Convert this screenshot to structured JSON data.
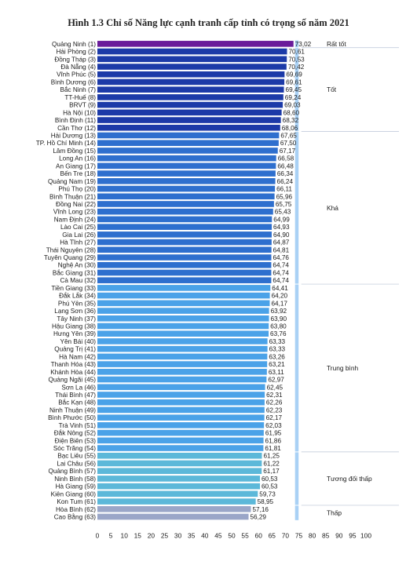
{
  "chart_data": {
    "type": "bar",
    "orientation": "horizontal",
    "title": "Hình 1.3 Chỉ số Năng lực cạnh tranh cấp tỉnh có trọng số năm 2021",
    "xlim": [
      0,
      100
    ],
    "xticks": [
      "0",
      "5",
      "10",
      "15",
      "20",
      "25",
      "30",
      "35",
      "40",
      "45",
      "50",
      "55",
      "60",
      "65",
      "70",
      "75",
      "80",
      "85",
      "90",
      "95",
      "100"
    ],
    "grid": false,
    "categories": [
      "Quảng Ninh (1)",
      "Hải Phòng (2)",
      "Đồng Tháp (3)",
      "Đà Nẵng (4)",
      "Vĩnh Phúc (5)",
      "Bình Dương (6)",
      "Bắc Ninh (7)",
      "TT-Huế (8)",
      "BRVT (9)",
      "Hà Nội (10)",
      "Bình Định (11)",
      "Cần Thơ (12)",
      "Hải Dương (13)",
      "TP. Hồ Chí Minh (14)",
      "Lâm Đồng (15)",
      "Long An (16)",
      "An Giang (17)",
      "Bến Tre (18)",
      "Quảng Nam (19)",
      "Phú Thọ (20)",
      "Bình Thuận (21)",
      "Đồng Nai (22)",
      "Vĩnh Long (23)",
      "Nam Định (24)",
      "Lào Cai (25)",
      "Gia Lai (26)",
      "Hà Tĩnh (27)",
      "Thái Nguyên (28)",
      "Tuyên Quang (29)",
      "Nghệ An (30)",
      "Bắc Giang (31)",
      "Cà Mau (32)",
      "Tiền Giang (33)",
      "Đắk Lắk (34)",
      "Phú Yên (35)",
      "Lạng Sơn (36)",
      "Tây Ninh (37)",
      "Hậu Giang (38)",
      "Hưng Yên (39)",
      "Yên Bái (40)",
      "Quảng Trị (41)",
      "Hà Nam (42)",
      "Thanh Hóa (43)",
      "Khánh Hòa (44)",
      "Quảng Ngãi (45)",
      "Sơn La (46)",
      "Thái Bình (47)",
      "Bắc Kạn (48)",
      "Ninh Thuận (49)",
      "Bình Phước (50)",
      "Trà Vinh (51)",
      "Đắk Nông (52)",
      "Điện Biên (53)",
      "Sóc Trăng (54)",
      "Bạc Liêu (55)",
      "Lai Châu (56)",
      "Quảng Bình (57)",
      "Ninh Bình (58)",
      "Hà Giang (59)",
      "Kiên Giang (60)",
      "Kon Tum (61)",
      "Hòa Bình (62)",
      "Cao Bằng (63)"
    ],
    "values": [
      73.02,
      70.61,
      70.53,
      70.42,
      69.69,
      69.61,
      69.45,
      69.24,
      69.03,
      68.6,
      68.32,
      68.06,
      67.65,
      67.5,
      67.17,
      66.58,
      66.48,
      66.34,
      66.24,
      66.11,
      65.96,
      65.75,
      65.43,
      64.99,
      64.93,
      64.9,
      64.87,
      64.81,
      64.76,
      64.74,
      64.74,
      64.74,
      64.41,
      64.2,
      64.17,
      63.92,
      63.9,
      63.8,
      63.76,
      63.33,
      63.33,
      63.26,
      63.21,
      63.11,
      62.97,
      62.45,
      62.31,
      62.26,
      62.23,
      62.17,
      62.03,
      61.95,
      61.86,
      61.81,
      61.25,
      61.22,
      61.17,
      60.53,
      60.53,
      59.73,
      58.95,
      57.16,
      56.29
    ],
    "value_labels": [
      "73,02",
      "70,61",
      "70,53",
      "70,42",
      "69,69",
      "69,61",
      "69,45",
      "69,24",
      "69,03",
      "68,60",
      "68,32",
      "68,06",
      "67,65",
      "67,50",
      "67,17",
      "66,58",
      "66,48",
      "66,34",
      "66,24",
      "66,11",
      "65,96",
      "65,75",
      "65,43",
      "64,99",
      "64,93",
      "64,90",
      "64,87",
      "64,81",
      "64,76",
      "64,74",
      "64,74",
      "64,74",
      "64,41",
      "64,20",
      "64,17",
      "63,92",
      "63,90",
      "63,80",
      "63,76",
      "63,33",
      "63,33",
      "63,26",
      "63,21",
      "63,11",
      "62,97",
      "62,45",
      "62,31",
      "62,26",
      "62,23",
      "62,17",
      "62,03",
      "61,95",
      "61,86",
      "61,81",
      "61,25",
      "61,22",
      "61,17",
      "60,53",
      "60,53",
      "59,73",
      "58,95",
      "57,16",
      "56,29"
    ],
    "groups": [
      {
        "label": "Rất tốt",
        "start": 0,
        "end": 0,
        "color": "#6a1b9a"
      },
      {
        "label": "Tốt",
        "start": 1,
        "end": 11,
        "color": "#1c3aa8"
      },
      {
        "label": "Khá",
        "start": 12,
        "end": 31,
        "color": "#2e6fce"
      },
      {
        "label": "Trung bình",
        "start": 32,
        "end": 53,
        "color": "#4aa2e8"
      },
      {
        "label": "Tương đối thấp",
        "start": 54,
        "end": 60,
        "color": "#5cb8d9"
      },
      {
        "label": "Thấp",
        "start": 61,
        "end": 62,
        "color": "#9aa6c8"
      }
    ],
    "group_bracket_color": "#a9d1f5"
  }
}
